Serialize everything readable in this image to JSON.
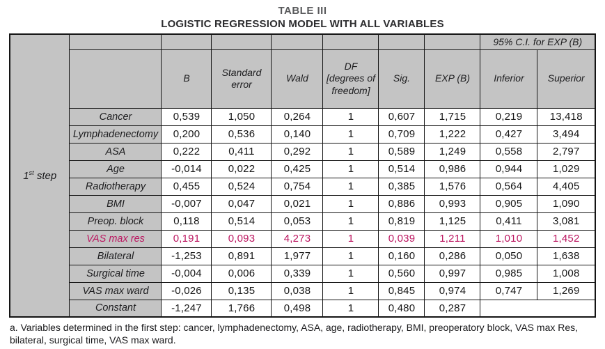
{
  "title": "TABLE III",
  "subtitle": "LOGISTIC REGRESSION MODEL WITH ALL VARIABLES",
  "colors": {
    "highlight": "#bc1660",
    "header_bg": "#c4c4c4",
    "border": "#141414",
    "title_gray": "#595a5c"
  },
  "table": {
    "step": {
      "num": "1",
      "sup": "st",
      "word": "step"
    },
    "ci_header": "95% C.I. for EXP (B)",
    "columns": [
      "B",
      "Standard\nerror",
      "Wald",
      "DF\n[degrees of\nfreedom]",
      "Sig.",
      "EXP (B)",
      "Inferior",
      "Superior"
    ],
    "rows": [
      {
        "label": "Cancer",
        "values": [
          "0,539",
          "1,050",
          "0,264",
          "1",
          "0,607",
          "1,715",
          "0,219",
          "13,418"
        ],
        "highlight": false
      },
      {
        "label": "Lymphadenectomy",
        "values": [
          "0,200",
          "0,536",
          "0,140",
          "1",
          "0,709",
          "1,222",
          "0,427",
          "3,494"
        ],
        "highlight": false
      },
      {
        "label": "ASA",
        "values": [
          "0,222",
          "0,411",
          "0,292",
          "1",
          "0,589",
          "1,249",
          "0,558",
          "2,797"
        ],
        "highlight": false
      },
      {
        "label": "Age",
        "values": [
          "-0,014",
          "0,022",
          "0,425",
          "1",
          "0,514",
          "0,986",
          "0,944",
          "1,029"
        ],
        "highlight": false
      },
      {
        "label": "Radiotherapy",
        "values": [
          "0,455",
          "0,524",
          "0,754",
          "1",
          "0,385",
          "1,576",
          "0,564",
          "4,405"
        ],
        "highlight": false
      },
      {
        "label": "BMI",
        "values": [
          "-0,007",
          "0,047",
          "0,021",
          "1",
          "0,886",
          "0,993",
          "0,905",
          "1,090"
        ],
        "highlight": false
      },
      {
        "label": "Preop. block",
        "values": [
          "0,118",
          "0,514",
          "0,053",
          "1",
          "0,819",
          "1,125",
          "0,411",
          "3,081"
        ],
        "highlight": false
      },
      {
        "label": "VAS max res",
        "values": [
          "0,191",
          "0,093",
          "4,273",
          "1",
          "0,039",
          "1,211",
          "1,010",
          "1,452"
        ],
        "highlight": true
      },
      {
        "label": "Bilateral",
        "values": [
          "-1,253",
          "0,891",
          "1,977",
          "1",
          "0,160",
          "0,286",
          "0,050",
          "1,638"
        ],
        "highlight": false
      },
      {
        "label": "Surgical time",
        "values": [
          "-0,004",
          "0,006",
          "0,339",
          "1",
          "0,560",
          "0,997",
          "0,985",
          "1,008"
        ],
        "highlight": false
      },
      {
        "label": "VAS max ward",
        "values": [
          "-0,026",
          "0,135",
          "0,038",
          "1",
          "0,845",
          "0,974",
          "0,747",
          "1,269"
        ],
        "highlight": false
      },
      {
        "label": "Constant",
        "values": [
          "-1,247",
          "1,766",
          "0,498",
          "1",
          "0,480",
          "0,287",
          "",
          ""
        ],
        "highlight": false
      }
    ]
  },
  "footnote": "a. Variables determined in the first step: cancer, lymphadenectomy, ASA, age, radiotherapy, BMI, preoperatory block, VAS max Res, bilateral, surgical time, VAS max ward."
}
